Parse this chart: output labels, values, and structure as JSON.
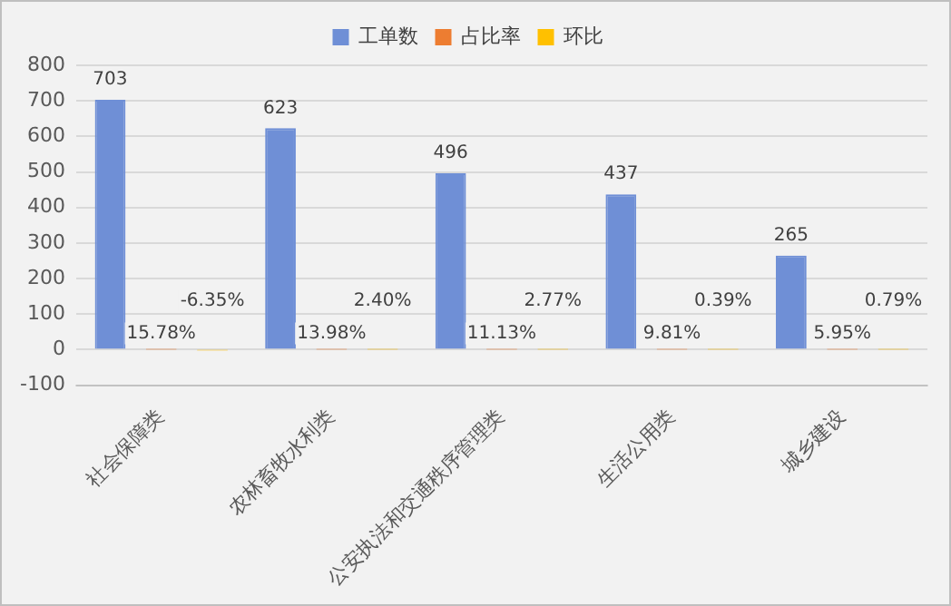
{
  "chart_data": {
    "type": "bar",
    "categories": [
      "社会保障类",
      "农林畜牧水利类",
      "公安执法和交通秩序管理类",
      "生活公用类",
      "城乡建设"
    ],
    "series": [
      {
        "name": "工单数",
        "color": "#6f8fd6",
        "values": [
          703,
          623,
          496,
          437,
          265
        ],
        "value_labels": [
          "703",
          "623",
          "496",
          "437",
          "265"
        ]
      },
      {
        "name": "占比率",
        "color": "#ed7d31",
        "values": [
          0.1578,
          0.1398,
          0.1113,
          0.0981,
          0.0595
        ],
        "value_labels": [
          "15.78%",
          "13.98%",
          "11.13%",
          "9.81%",
          "5.95%"
        ]
      },
      {
        "name": "环比",
        "color": "#ffc000",
        "values": [
          -0.0635,
          0.024,
          0.0277,
          0.0039,
          0.0079
        ],
        "value_labels": [
          "-6.35%",
          "2.40%",
          "2.77%",
          "0.39%",
          "0.79%"
        ]
      }
    ],
    "ylim": [
      -100,
      800
    ],
    "yticks": [
      -100,
      0,
      100,
      200,
      300,
      400,
      500,
      600,
      700,
      800
    ],
    "grid": "y",
    "legend": "top"
  }
}
